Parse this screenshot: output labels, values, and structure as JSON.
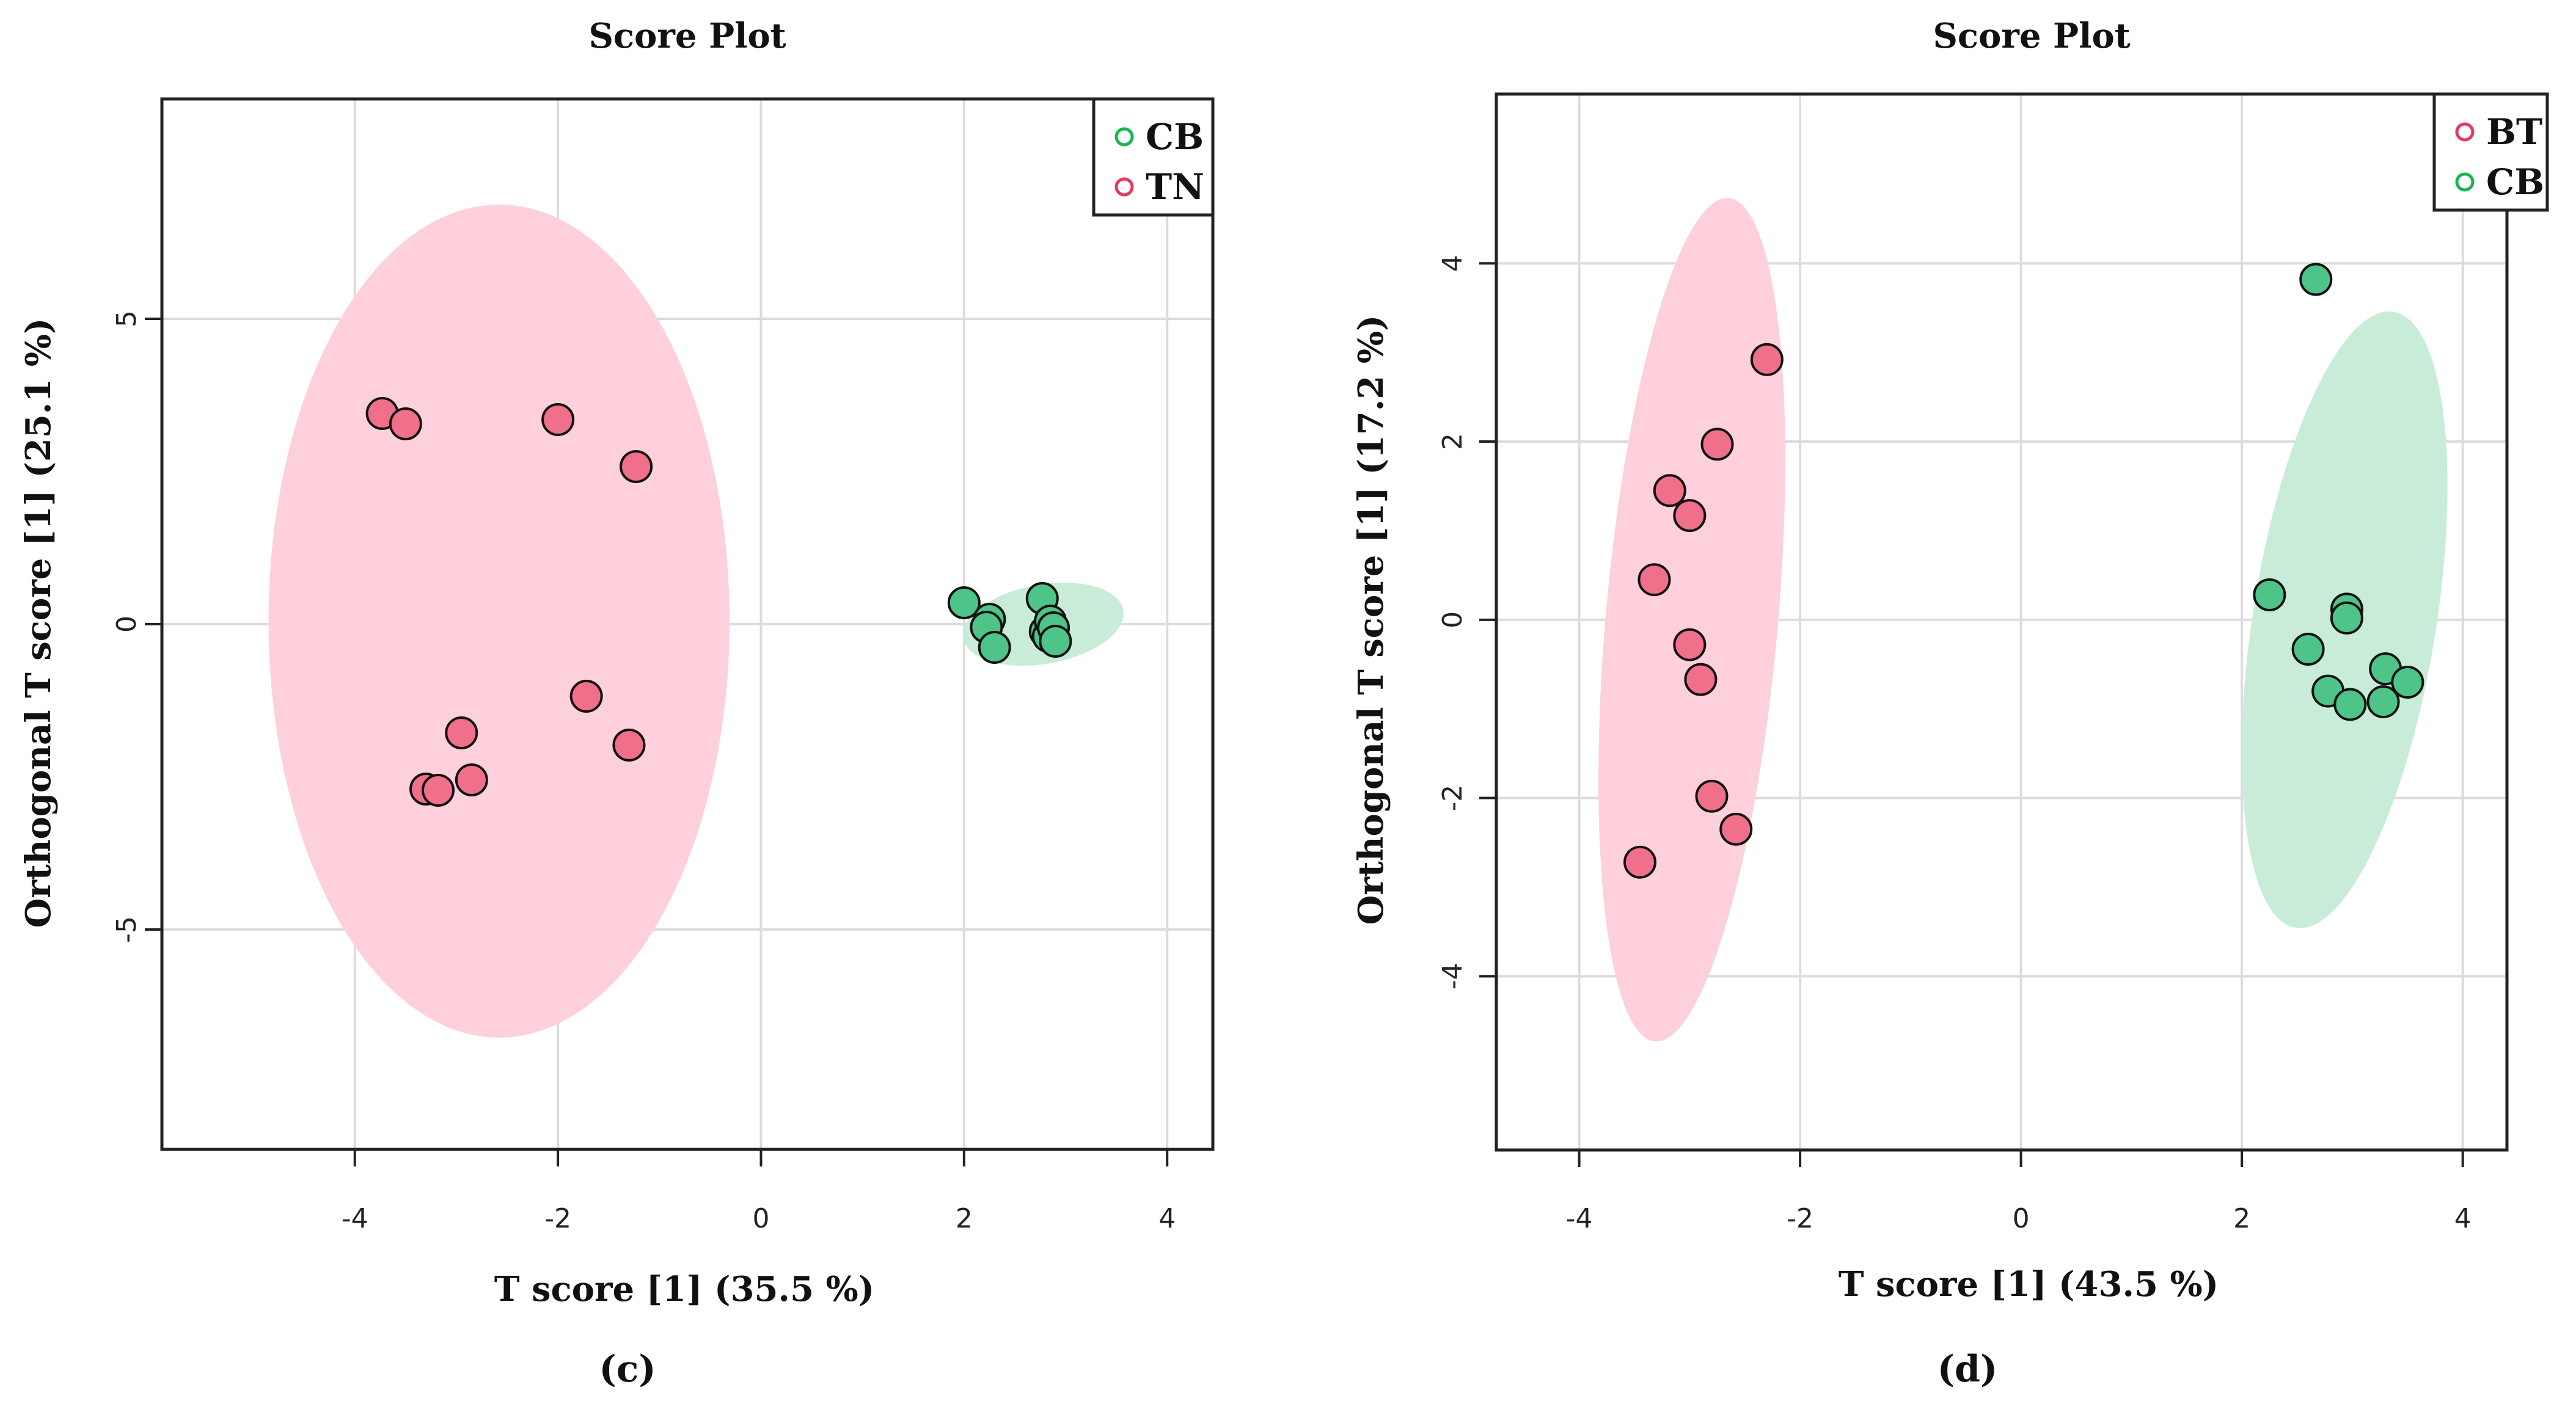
{
  "chart_data": [
    {
      "type": "scatter",
      "panel_label": "(c)",
      "title": "Score Plot",
      "xlabel": "T score [1] (35.5 %)",
      "ylabel": "Orthogonal T score [1] (25.1 %)",
      "xlim": [
        -5.9,
        4.45
      ],
      "ylim": [
        -8.6,
        8.6
      ],
      "xticks": [
        -4,
        -2,
        0,
        2,
        4
      ],
      "yticks": [
        -5,
        0,
        5
      ],
      "xtick_labels": [
        "-4",
        "-2",
        "0",
        "2",
        "4"
      ],
      "ytick_labels": [
        "-5",
        "0",
        "5"
      ],
      "grid": true,
      "legend_position": "top-right",
      "legend": [
        {
          "label": "CB",
          "color": "#19b552"
        },
        {
          "label": "TN",
          "color": "#e8385e"
        }
      ],
      "series": [
        {
          "name": "CB",
          "point_color": "#4ec488",
          "ellipse_color": "#c8ecd8",
          "ellipse": {
            "cx": 2.78,
            "cy": 0.0,
            "rx": 0.8,
            "ry": 0.65,
            "angle_deg": -10
          },
          "points": [
            {
              "x": 2.0,
              "y": 0.35
            },
            {
              "x": 2.25,
              "y": 0.08
            },
            {
              "x": 2.22,
              "y": -0.05
            },
            {
              "x": 2.3,
              "y": -0.38
            },
            {
              "x": 2.77,
              "y": 0.42
            },
            {
              "x": 2.8,
              "y": -0.12
            },
            {
              "x": 2.83,
              "y": -0.2
            },
            {
              "x": 2.85,
              "y": 0.05
            },
            {
              "x": 2.88,
              "y": -0.06
            },
            {
              "x": 2.9,
              "y": -0.28
            }
          ]
        },
        {
          "name": "TN",
          "point_color": "#f06f8b",
          "ellipse_color": "#fdd0dc",
          "ellipse": {
            "cx": -2.58,
            "cy": 0.05,
            "rx": 2.27,
            "ry": 6.82,
            "angle_deg": 0
          },
          "points": [
            {
              "x": -3.73,
              "y": 3.45
            },
            {
              "x": -3.5,
              "y": 3.28
            },
            {
              "x": -2.0,
              "y": 3.35
            },
            {
              "x": -1.23,
              "y": 2.58
            },
            {
              "x": -2.95,
              "y": -1.78
            },
            {
              "x": -1.72,
              "y": -1.18
            },
            {
              "x": -1.3,
              "y": -1.98
            },
            {
              "x": -2.85,
              "y": -2.55
            },
            {
              "x": -3.3,
              "y": -2.7
            },
            {
              "x": -3.18,
              "y": -2.72
            }
          ]
        }
      ]
    },
    {
      "type": "scatter",
      "panel_label": "(d)",
      "title": "Score Plot",
      "xlabel": "T score [1] (43.5 %)",
      "ylabel": "Orthogonal T score [1] (17.2 %)",
      "xlim": [
        -4.75,
        4.4
      ],
      "ylim": [
        -5.95,
        5.9
      ],
      "xticks": [
        -4,
        -2,
        0,
        2,
        4
      ],
      "yticks": [
        -4,
        -2,
        0,
        2,
        4
      ],
      "xtick_labels": [
        "-4",
        "-2",
        "0",
        "2",
        "4"
      ],
      "ytick_labels": [
        "-4",
        "-2",
        "0",
        "2",
        "4"
      ],
      "grid": true,
      "legend_position": "top-right",
      "legend": [
        {
          "label": "BT",
          "color": "#e8385e"
        },
        {
          "label": "CB",
          "color": "#19b552"
        }
      ],
      "series": [
        {
          "name": "BT",
          "point_color": "#f06f8b",
          "ellipse_color": "#fdd0dc",
          "ellipse": {
            "cx": -2.98,
            "cy": 0.0,
            "rx": 0.78,
            "ry": 4.75,
            "angle_deg": 5
          },
          "points": [
            {
              "x": -2.3,
              "y": 2.92
            },
            {
              "x": -2.75,
              "y": 1.97
            },
            {
              "x": -3.18,
              "y": 1.45
            },
            {
              "x": -3.0,
              "y": 1.17
            },
            {
              "x": -3.32,
              "y": 0.45
            },
            {
              "x": -3.0,
              "y": -0.28
            },
            {
              "x": -2.9,
              "y": -0.67
            },
            {
              "x": -2.8,
              "y": -1.98
            },
            {
              "x": -2.58,
              "y": -2.35
            },
            {
              "x": -3.45,
              "y": -2.72
            }
          ]
        },
        {
          "name": "CB",
          "point_color": "#4ec488",
          "ellipse_color": "#c8ecd8",
          "ellipse": {
            "cx": 2.93,
            "cy": 0.0,
            "rx": 0.83,
            "ry": 3.5,
            "angle_deg": 9
          },
          "points": [
            {
              "x": 2.67,
              "y": 3.82
            },
            {
              "x": 2.25,
              "y": 0.28
            },
            {
              "x": 2.95,
              "y": 0.12
            },
            {
              "x": 2.95,
              "y": 0.02
            },
            {
              "x": 2.6,
              "y": -0.33
            },
            {
              "x": 3.3,
              "y": -0.55
            },
            {
              "x": 3.5,
              "y": -0.7
            },
            {
              "x": 2.78,
              "y": -0.8
            },
            {
              "x": 2.98,
              "y": -0.95
            },
            {
              "x": 3.28,
              "y": -0.92
            }
          ]
        }
      ]
    }
  ]
}
